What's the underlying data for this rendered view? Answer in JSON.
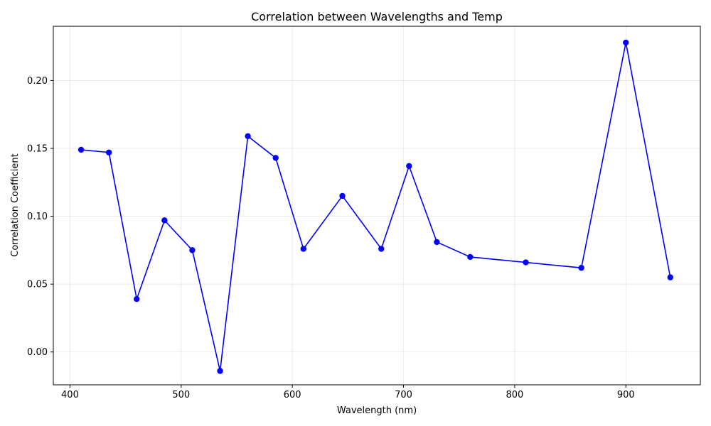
{
  "chart_data": {
    "type": "line",
    "title": "Correlation between Wavelengths and Temp",
    "xlabel": "Wavelength (nm)",
    "ylabel": "Correlation Coefficient",
    "xlim": [
      385,
      967
    ],
    "ylim": [
      -0.0242,
      0.24
    ],
    "xticks": [
      400,
      500,
      600,
      700,
      800,
      900
    ],
    "yticks": [
      0.0,
      0.05,
      0.1,
      0.15,
      0.2
    ],
    "ytick_labels": [
      "0.00",
      "0.05",
      "0.10",
      "0.15",
      "0.20"
    ],
    "grid": true,
    "legend": "none",
    "series": [
      {
        "color": "#0000ff",
        "marker": "circle",
        "x": [
          410,
          435,
          460,
          485,
          510,
          535,
          560,
          585,
          610,
          645,
          680,
          705,
          730,
          760,
          810,
          860,
          900,
          940
        ],
        "y": [
          0.149,
          0.147,
          0.039,
          0.097,
          0.075,
          -0.014,
          0.159,
          0.143,
          0.076,
          0.115,
          0.076,
          0.137,
          0.081,
          0.07,
          0.066,
          0.062,
          0.228,
          0.055
        ]
      }
    ]
  }
}
